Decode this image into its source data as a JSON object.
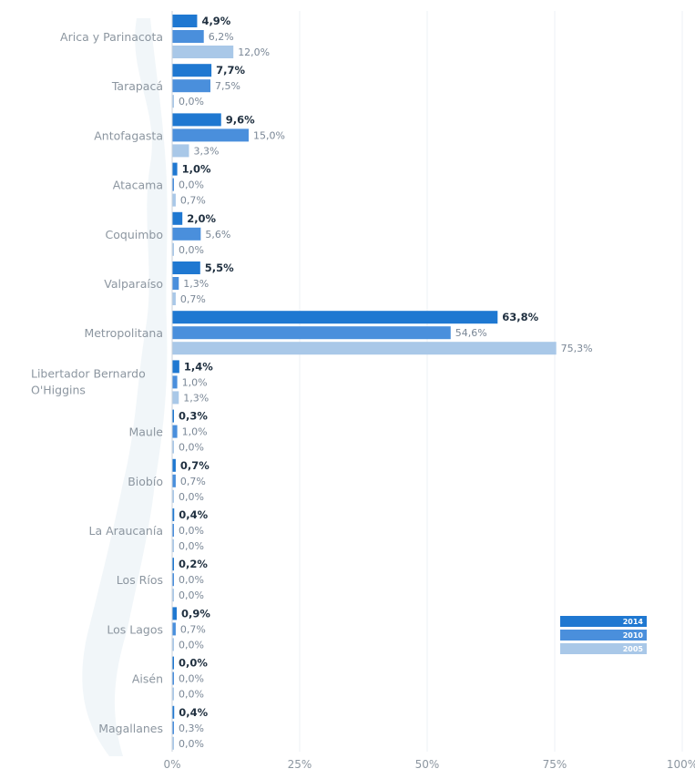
{
  "chart_data": {
    "type": "bar",
    "orientation": "horizontal",
    "categories": [
      "Arica y Parinacota",
      "Tarapacá",
      "Antofagasta",
      "Atacama",
      "Coquimbo",
      "Valparaíso",
      "Metropolitana",
      "Libertador Bernardo O'Higgins",
      "Maule",
      "Biobío",
      "La Araucanía",
      "Los Ríos",
      "Los Lagos",
      "Aisén",
      "Magallanes"
    ],
    "series": [
      {
        "name": "2014",
        "color": "#1f78d1",
        "values": [
          4.9,
          7.7,
          9.6,
          1.0,
          2.0,
          5.5,
          63.8,
          1.4,
          0.3,
          0.7,
          0.4,
          0.2,
          0.9,
          0.0,
          0.4
        ],
        "labels": [
          "4,9%",
          "7,7%",
          "9,6%",
          "1,0%",
          "2,0%",
          "5,5%",
          "63,8%",
          "1,4%",
          "0,3%",
          "0,7%",
          "0,4%",
          "0,2%",
          "0,9%",
          "0,0%",
          "0,4%"
        ]
      },
      {
        "name": "2010",
        "color": "#4a8fdc",
        "values": [
          6.2,
          7.5,
          15.0,
          0.0,
          5.6,
          1.3,
          54.6,
          1.0,
          1.0,
          0.7,
          0.0,
          0.0,
          0.7,
          0.0,
          0.3
        ],
        "labels": [
          "6,2%",
          "7,5%",
          "15,0%",
          "0,0%",
          "5,6%",
          "1,3%",
          "54,6%",
          "1,0%",
          "1,0%",
          "0,7%",
          "0,0%",
          "0,0%",
          "0,7%",
          "0,0%",
          "0,3%"
        ]
      },
      {
        "name": "2005",
        "color": "#a9c8e8",
        "values": [
          12.0,
          0.0,
          3.3,
          0.7,
          0.0,
          0.7,
          75.3,
          1.3,
          0.0,
          0.0,
          0.0,
          0.0,
          0.0,
          0.0,
          0.0
        ],
        "labels": [
          "12,0%",
          "0,0%",
          "3,3%",
          "0,7%",
          "0,0%",
          "0,7%",
          "75,3%",
          "1,3%",
          "0,0%",
          "0,0%",
          "0,0%",
          "0,0%",
          "0,0%",
          "0,0%",
          "0,0%"
        ]
      }
    ],
    "x_ticks": [
      "0%",
      "25%",
      "50%",
      "75%",
      "100%"
    ],
    "xlim": [
      0,
      100
    ],
    "legend": [
      "2014",
      "2010",
      "2005"
    ],
    "legend_position": "bottom-right",
    "grid": true
  }
}
